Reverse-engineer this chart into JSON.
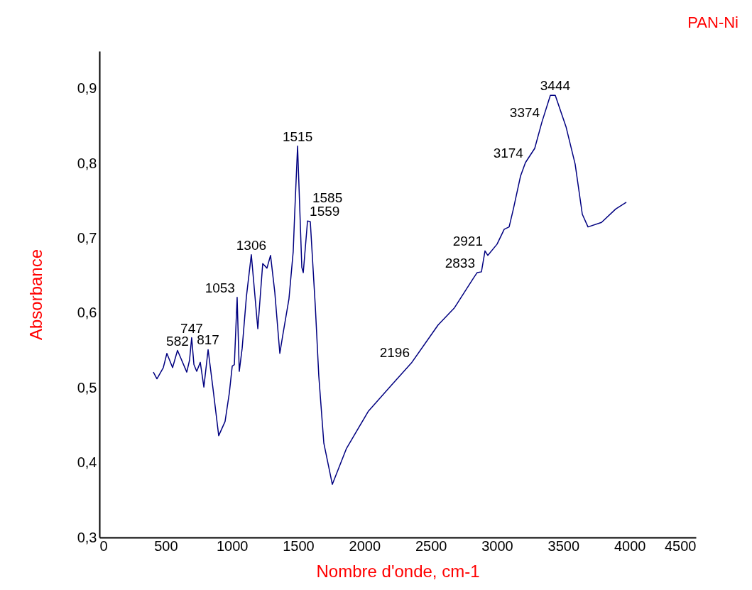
{
  "chart_data": {
    "type": "line",
    "title": "PAN-Ni",
    "xlabel": "Nombre d'onde, cm-1",
    "ylabel": "Absorbance",
    "xlim": [
      0,
      4500
    ],
    "xticks": [
      0,
      500,
      1000,
      1500,
      2000,
      2500,
      3000,
      3500,
      4000,
      4500
    ],
    "ylim": [
      0.3,
      0.95
    ],
    "yticks": [
      {
        "value": 0.3,
        "label": "0,3"
      },
      {
        "value": 0.4,
        "label": "0,4"
      },
      {
        "value": 0.5,
        "label": "0,5"
      },
      {
        "value": 0.6,
        "label": "0,6"
      },
      {
        "value": 0.7,
        "label": "0,7"
      },
      {
        "value": 0.8,
        "label": "0,8"
      },
      {
        "value": 0.9,
        "label": "0,9"
      }
    ],
    "grid": false,
    "marker": "none",
    "line_style": "solid",
    "x": [
      407,
      434,
      482,
      509,
      552,
      589,
      659,
      680,
      696,
      713,
      734,
      761,
      788,
      820,
      857,
      900,
      948,
      980,
      1002,
      1018,
      1039,
      1055,
      1077,
      1109,
      1146,
      1195,
      1232,
      1264,
      1291,
      1323,
      1361,
      1382,
      1430,
      1462,
      1473,
      1495,
      1527,
      1538,
      1570,
      1591,
      1629,
      1655,
      1693,
      1757,
      1864,
      2030,
      2196,
      2357,
      2555,
      2679,
      2823,
      2850,
      2882,
      2909,
      2930,
      3000,
      3054,
      3091,
      3123,
      3177,
      3214,
      3284,
      3338,
      3402,
      3439,
      3520,
      3589,
      3643,
      3686,
      3788,
      3895,
      3975
    ],
    "series": [
      {
        "color": "#000080",
        "values": [
          0.521,
          0.512,
          0.527,
          0.546,
          0.527,
          0.55,
          0.521,
          0.537,
          0.567,
          0.531,
          0.522,
          0.534,
          0.501,
          0.551,
          0.499,
          0.436,
          0.455,
          0.493,
          0.529,
          0.531,
          0.621,
          0.522,
          0.553,
          0.622,
          0.678,
          0.579,
          0.666,
          0.66,
          0.677,
          0.628,
          0.546,
          0.569,
          0.619,
          0.682,
          0.732,
          0.823,
          0.661,
          0.654,
          0.723,
          0.722,
          0.608,
          0.516,
          0.426,
          0.371,
          0.419,
          0.469,
          0.502,
          0.534,
          0.584,
          0.607,
          0.647,
          0.654,
          0.655,
          0.683,
          0.677,
          0.692,
          0.712,
          0.715,
          0.739,
          0.783,
          0.801,
          0.82,
          0.855,
          0.891,
          0.891,
          0.849,
          0.799,
          0.732,
          0.715,
          0.721,
          0.739,
          0.748
        ]
      }
    ],
    "annotations": [
      {
        "text": "582",
        "x": 589,
        "y": 0.55
      },
      {
        "text": "747",
        "x": 696,
        "y": 0.567
      },
      {
        "text": "817",
        "x": 820,
        "y": 0.551
      },
      {
        "text": "1053",
        "x": 1039,
        "y": 0.621
      },
      {
        "text": "1306",
        "x": 1146,
        "y": 0.678
      },
      {
        "text": "1515",
        "x": 1495,
        "y": 0.823
      },
      {
        "text": "1559",
        "x": 1570,
        "y": 0.723
      },
      {
        "text": "1585",
        "x": 1591,
        "y": 0.722
      },
      {
        "text": "2196",
        "x": 2357,
        "y": 0.534
      },
      {
        "text": "2833",
        "x": 2850,
        "y": 0.654
      },
      {
        "text": "2921",
        "x": 2909,
        "y": 0.683
      },
      {
        "text": "3174",
        "x": 3214,
        "y": 0.801
      },
      {
        "text": "3374",
        "x": 3338,
        "y": 0.855
      },
      {
        "text": "3444",
        "x": 3439,
        "y": 0.891
      }
    ]
  }
}
